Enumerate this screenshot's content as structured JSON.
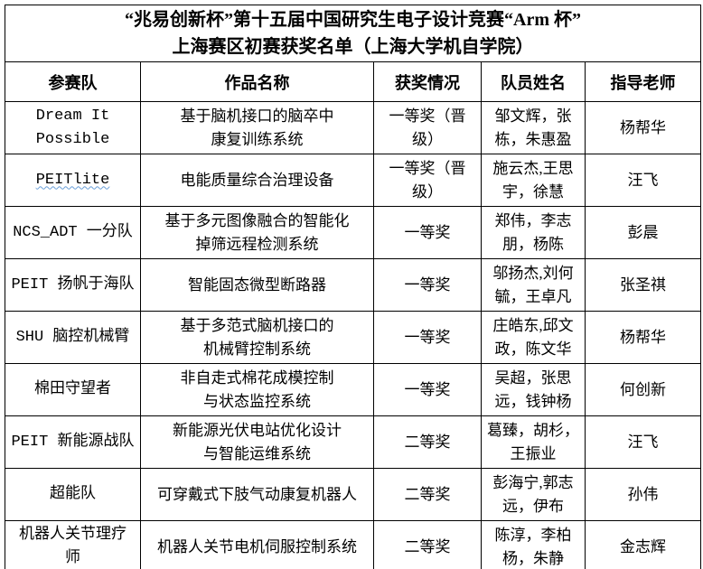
{
  "title": {
    "line1": "“兆易创新杯”第十五届中国研究生电子设计竞赛“Arm 杯”",
    "line2": "上海赛区初赛获奖名单（上海大学机自学院）"
  },
  "columns": [
    "参赛队",
    "作品名称",
    "获奖情况",
    "队员姓名",
    "指导老师"
  ],
  "colors": {
    "border": "#000000",
    "text": "#000000",
    "spellcheck_underline": "#6a9fd8",
    "background": "#ffffff"
  },
  "rows": [
    {
      "team": "Dream It\nPossible",
      "project": "基于脑机接口的脑卒中\n康复训练系统",
      "award": "一等奖（晋\n级）",
      "members": "邹文辉，张\n栋，朱惠盈",
      "teacher": "杨帮华"
    },
    {
      "team": "PEITlite",
      "project": "电能质量综合治理设备",
      "award": "一等奖（晋\n级）",
      "members": "施云杰,王思\n宇，徐慧",
      "teacher": "汪飞"
    },
    {
      "team": "NCS_ADT 一分队",
      "project": "基于多元图像融合的智能化\n掉筛远程检测系统",
      "award": "一等奖",
      "members": "郑伟，李志\n朋，杨陈",
      "teacher": "彭晨"
    },
    {
      "team": "PEIT 扬帆于海队",
      "project": "智能固态微型断路器",
      "award": "一等奖",
      "members": "邬扬杰,刘何\n毓，王卓凡",
      "teacher": "张圣祺"
    },
    {
      "team": "SHU 脑控机械臂",
      "project": "基于多范式脑机接口的\n机械臂控制系统",
      "award": "一等奖",
      "members": "庄皓东,邱文\n政，陈文华",
      "teacher": "杨帮华"
    },
    {
      "team": "棉田守望者",
      "project": "非自走式棉花成模控制\n与状态监控系统",
      "award": "一等奖",
      "members": "吴超，张思\n远，钱钟杨",
      "teacher": "何创新"
    },
    {
      "team": "PEIT 新能源战队",
      "project": "新能源光伏电站优化设计\n与智能运维系统",
      "award": "二等奖",
      "members": "葛臻，胡杉，\n王振业",
      "teacher": "汪飞"
    },
    {
      "team": "超能队",
      "project": "可穿戴式下肢气动康复机器人",
      "award": "二等奖",
      "members": "彭海宁,郭志\n远，伊布",
      "teacher": "孙伟"
    },
    {
      "team": "机器人关节理疗\n师",
      "project": "机器人关节电机伺服控制系统",
      "award": "二等奖",
      "members": "陈淳，李柏\n杨，朱静",
      "teacher": "金志辉"
    }
  ]
}
